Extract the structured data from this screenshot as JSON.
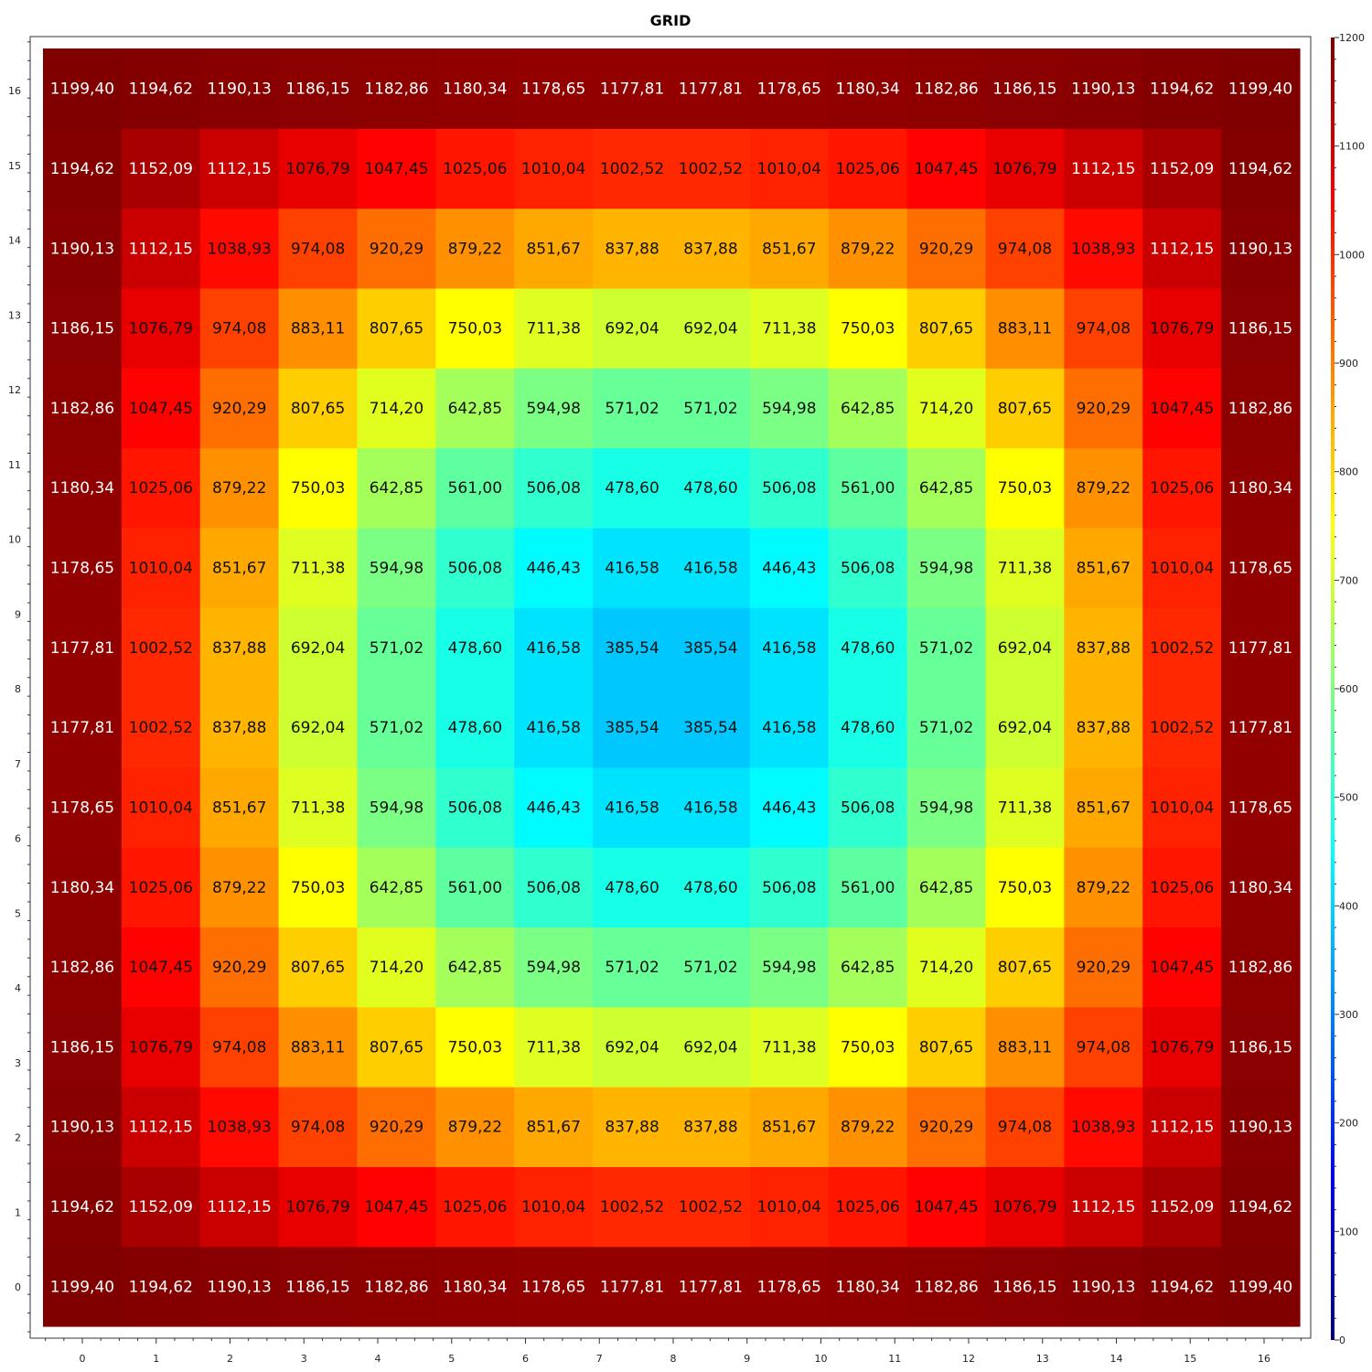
{
  "chart_data": {
    "type": "heatmap",
    "title": "GRID",
    "x": [
      0,
      1,
      2,
      3,
      4,
      5,
      6,
      7,
      8,
      9,
      10,
      11,
      12,
      13,
      14,
      15,
      16
    ],
    "y": [
      0,
      1,
      2,
      3,
      4,
      5,
      6,
      7,
      8,
      9,
      10,
      11,
      12,
      13,
      14,
      15,
      16
    ],
    "x_tick_labels": [
      "0",
      "1",
      "2",
      "3",
      "4",
      "5",
      "6",
      "7",
      "8",
      "9",
      "10",
      "11",
      "12",
      "13",
      "14",
      "15",
      "16"
    ],
    "y_tick_labels": [
      "0",
      "1",
      "2",
      "3",
      "4",
      "5",
      "6",
      "7",
      "8",
      "9",
      "10",
      "11",
      "12",
      "13",
      "14",
      "15",
      "16"
    ],
    "colorbar": {
      "range": [
        0,
        1200
      ],
      "ticks": [
        0,
        100,
        200,
        300,
        400,
        500,
        600,
        700,
        800,
        900,
        1000,
        1100,
        1200
      ],
      "tick_labels": [
        "0",
        "100",
        "200",
        "300",
        "400",
        "500",
        "600",
        "700",
        "800",
        "900",
        "1000",
        "1100",
        "1200"
      ],
      "colormap": "jet",
      "placement": "right"
    },
    "value_labels": [
      [
        "1199,40",
        "1194,62",
        "1190,13",
        "1186,15",
        "1182,86",
        "1180,34",
        "1178,65",
        "1177,81",
        "1177,81",
        "1178,65",
        "1180,34",
        "1182,86",
        "1186,15",
        "1190,13",
        "1194,62",
        "1199,40"
      ],
      [
        "1194,62",
        "1152,09",
        "1112,15",
        "1076,79",
        "1047,45",
        "1025,06",
        "1010,04",
        "1002,52",
        "1002,52",
        "1010,04",
        "1025,06",
        "1047,45",
        "1076,79",
        "1112,15",
        "1152,09",
        "1194,62"
      ],
      [
        "1190,13",
        "1112,15",
        "1038,93",
        "974,08",
        "920,29",
        "879,22",
        "851,67",
        "837,88",
        "837,88",
        "851,67",
        "879,22",
        "920,29",
        "974,08",
        "1038,93",
        "1112,15",
        "1190,13"
      ],
      [
        "1186,15",
        "1076,79",
        "974,08",
        "883,11",
        "807,65",
        "750,03",
        "711,38",
        "692,04",
        "692,04",
        "711,38",
        "750,03",
        "807,65",
        "883,11",
        "974,08",
        "1076,79",
        "1186,15"
      ],
      [
        "1182,86",
        "1047,45",
        "920,29",
        "807,65",
        "714,20",
        "642,85",
        "594,98",
        "571,02",
        "571,02",
        "594,98",
        "642,85",
        "714,20",
        "807,65",
        "920,29",
        "1047,45",
        "1182,86"
      ],
      [
        "1180,34",
        "1025,06",
        "879,22",
        "750,03",
        "642,85",
        "561,00",
        "506,08",
        "478,60",
        "478,60",
        "506,08",
        "561,00",
        "642,85",
        "750,03",
        "879,22",
        "1025,06",
        "1180,34"
      ],
      [
        "1178,65",
        "1010,04",
        "851,67",
        "711,38",
        "594,98",
        "506,08",
        "446,43",
        "416,58",
        "416,58",
        "446,43",
        "506,08",
        "594,98",
        "711,38",
        "851,67",
        "1010,04",
        "1178,65"
      ],
      [
        "1177,81",
        "1002,52",
        "837,88",
        "692,04",
        "571,02",
        "478,60",
        "416,58",
        "385,54",
        "385,54",
        "416,58",
        "478,60",
        "571,02",
        "692,04",
        "837,88",
        "1002,52",
        "1177,81"
      ],
      [
        "1177,81",
        "1002,52",
        "837,88",
        "692,04",
        "571,02",
        "478,60",
        "416,58",
        "385,54",
        "385,54",
        "416,58",
        "478,60",
        "571,02",
        "692,04",
        "837,88",
        "1002,52",
        "1177,81"
      ],
      [
        "1178,65",
        "1010,04",
        "851,67",
        "711,38",
        "594,98",
        "506,08",
        "446,43",
        "416,58",
        "416,58",
        "446,43",
        "506,08",
        "594,98",
        "711,38",
        "851,67",
        "1010,04",
        "1178,65"
      ],
      [
        "1180,34",
        "1025,06",
        "879,22",
        "750,03",
        "642,85",
        "561,00",
        "506,08",
        "478,60",
        "478,60",
        "506,08",
        "561,00",
        "642,85",
        "750,03",
        "879,22",
        "1025,06",
        "1180,34"
      ],
      [
        "1182,86",
        "1047,45",
        "920,29",
        "807,65",
        "714,20",
        "642,85",
        "594,98",
        "571,02",
        "571,02",
        "594,98",
        "642,85",
        "714,20",
        "807,65",
        "920,29",
        "1047,45",
        "1182,86"
      ],
      [
        "1186,15",
        "1076,79",
        "974,08",
        "883,11",
        "807,65",
        "750,03",
        "711,38",
        "692,04",
        "692,04",
        "711,38",
        "750,03",
        "807,65",
        "883,11",
        "974,08",
        "1076,79",
        "1186,15"
      ],
      [
        "1190,13",
        "1112,15",
        "1038,93",
        "974,08",
        "920,29",
        "879,22",
        "851,67",
        "837,88",
        "837,88",
        "851,67",
        "879,22",
        "920,29",
        "974,08",
        "1038,93",
        "1112,15",
        "1190,13"
      ],
      [
        "1194,62",
        "1152,09",
        "1112,15",
        "1076,79",
        "1047,45",
        "1025,06",
        "1010,04",
        "1002,52",
        "1002,52",
        "1010,04",
        "1025,06",
        "1047,45",
        "1076,79",
        "1112,15",
        "1152,09",
        "1194,62"
      ],
      [
        "1199,40",
        "1194,62",
        "1190,13",
        "1186,15",
        "1182,86",
        "1180,34",
        "1178,65",
        "1177,81",
        "1177,81",
        "1178,65",
        "1180,34",
        "1182,86",
        "1186,15",
        "1190,13",
        "1194,62",
        "1199,40"
      ]
    ]
  }
}
